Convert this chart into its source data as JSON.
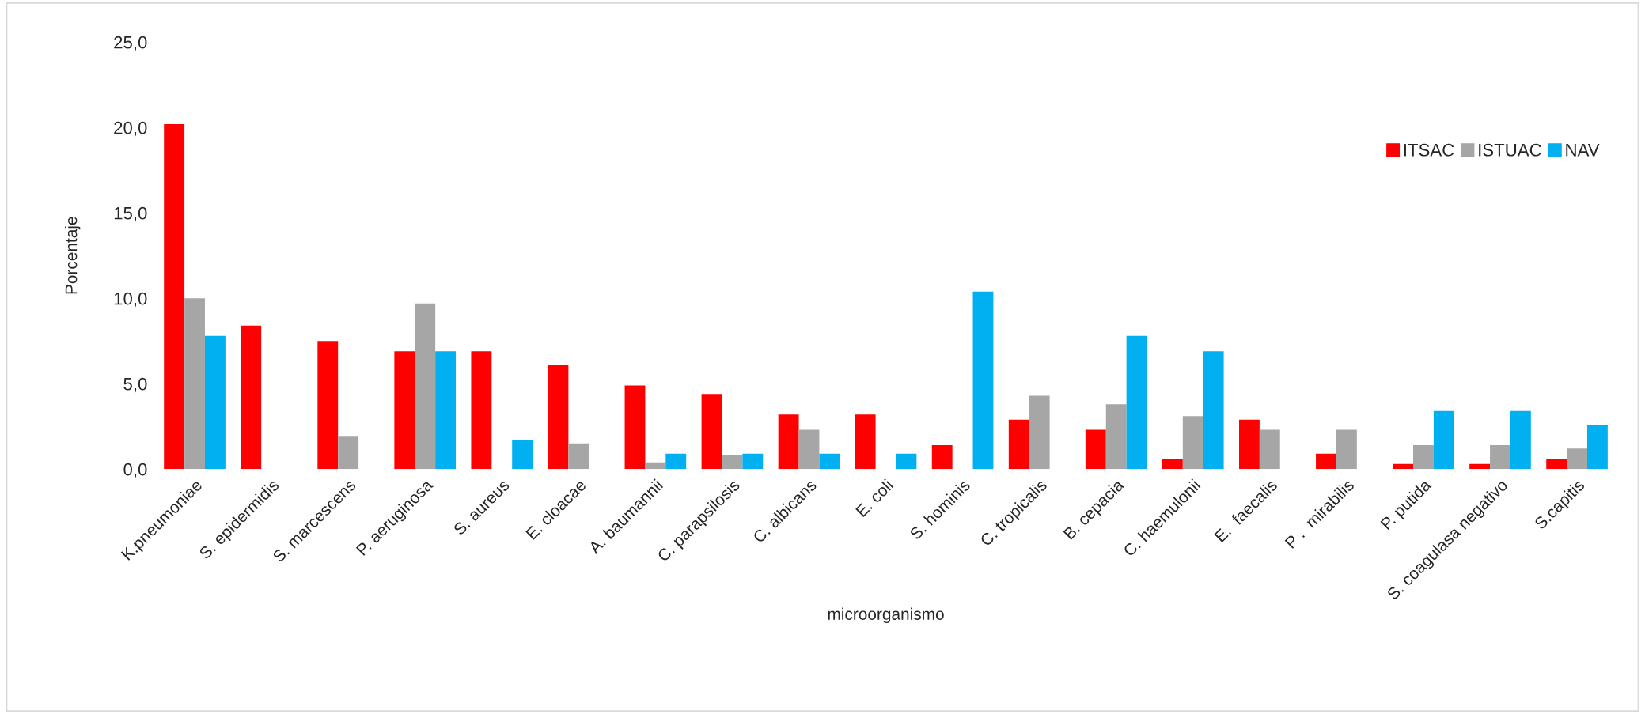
{
  "chart_data": {
    "type": "bar",
    "xlabel": "microorganismo",
    "ylabel": "Porcentaje",
    "categories": [
      "K.pneumoniae",
      "S. epidermidis",
      "S. marcescens",
      "P. aeruginosa",
      "S. aureus",
      "E. cloacae",
      "A. baumannii",
      "C. parapsilosis",
      "C. albicans",
      "E. coli",
      "S. hominis",
      "C. tropicalis",
      "B. cepacia",
      "C. haemulonii",
      "E.  faecalis",
      "P .  mirabilis",
      "P. putida",
      "S. coagulasa negativo",
      "S.capitis"
    ],
    "series": [
      {
        "name": "ITSAC",
        "color": "#ff0000",
        "values": [
          20.2,
          8.4,
          7.5,
          6.9,
          6.9,
          6.1,
          4.9,
          4.4,
          3.2,
          3.2,
          1.4,
          2.9,
          2.3,
          0.6,
          2.9,
          0.9,
          0.3,
          0.3,
          0.6
        ]
      },
      {
        "name": "ISTUAC",
        "color": "#a6a6a6",
        "values": [
          10.0,
          0,
          1.9,
          9.7,
          0,
          1.5,
          0.4,
          0.8,
          2.3,
          0,
          0,
          4.3,
          3.8,
          3.1,
          2.3,
          2.3,
          1.4,
          1.4,
          1.2
        ]
      },
      {
        "name": "NAV",
        "color": "#00b0f0",
        "values": [
          7.8,
          0,
          0,
          6.9,
          1.7,
          0,
          0.9,
          0.9,
          0.9,
          0.9,
          10.4,
          0,
          7.8,
          6.9,
          0,
          0,
          3.4,
          3.4,
          2.6
        ]
      }
    ],
    "ylim": [
      0,
      25
    ],
    "yticks": [
      {
        "value": 0,
        "label": "0,0"
      },
      {
        "value": 5,
        "label": "5,0"
      },
      {
        "value": 10,
        "label": "10,0"
      },
      {
        "value": 15,
        "label": "15,0"
      },
      {
        "value": 20,
        "label": "20,0"
      },
      {
        "value": 25,
        "label": "25,0"
      }
    ],
    "grid": false,
    "legend": "top right"
  }
}
